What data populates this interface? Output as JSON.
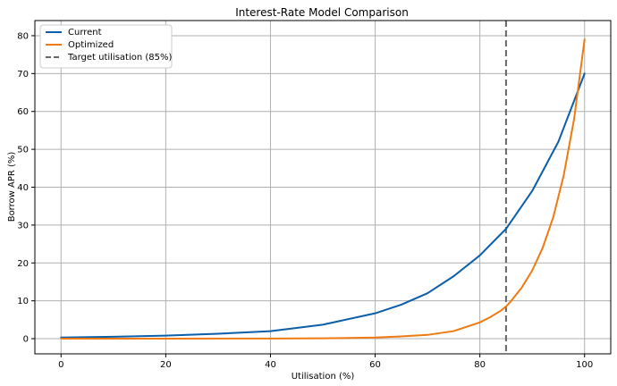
{
  "chart_data": {
    "type": "line",
    "title": "Interest-Rate Model Comparison",
    "xlabel": "Utilisation (%)",
    "ylabel": "Borrow APR (%)",
    "xlim": [
      -5,
      105
    ],
    "ylim": [
      -4,
      84
    ],
    "xticks": [
      0,
      20,
      40,
      60,
      80,
      100
    ],
    "yticks": [
      0,
      10,
      20,
      30,
      40,
      50,
      60,
      70,
      80
    ],
    "grid": true,
    "legend_position": "top-left",
    "series": [
      {
        "name": "Current",
        "color": "#0b5ea8",
        "x": [
          0,
          10,
          20,
          30,
          40,
          50,
          60,
          65,
          70,
          75,
          80,
          85,
          90,
          95,
          100
        ],
        "y": [
          0.3,
          0.5,
          0.8,
          1.3,
          2.0,
          3.7,
          6.7,
          9.0,
          12.0,
          16.5,
          22.0,
          29.0,
          39.0,
          52.0,
          70.0
        ]
      },
      {
        "name": "Optimized",
        "color": "#f07a12",
        "x": [
          0,
          20,
          40,
          50,
          60,
          65,
          70,
          75,
          80,
          82,
          84,
          85,
          86,
          88,
          90,
          92,
          94,
          96,
          98,
          100
        ],
        "y": [
          0.0,
          0.0,
          0.05,
          0.1,
          0.3,
          0.6,
          1.0,
          2.0,
          4.3,
          5.7,
          7.4,
          8.5,
          10.0,
          13.5,
          18.0,
          24.0,
          32.0,
          43.0,
          58.0,
          79.0
        ]
      }
    ],
    "reference_lines": [
      {
        "name": "Target utilisation (85%)",
        "axis": "x",
        "value": 85,
        "color": "#666666",
        "style": "dashed"
      }
    ]
  }
}
